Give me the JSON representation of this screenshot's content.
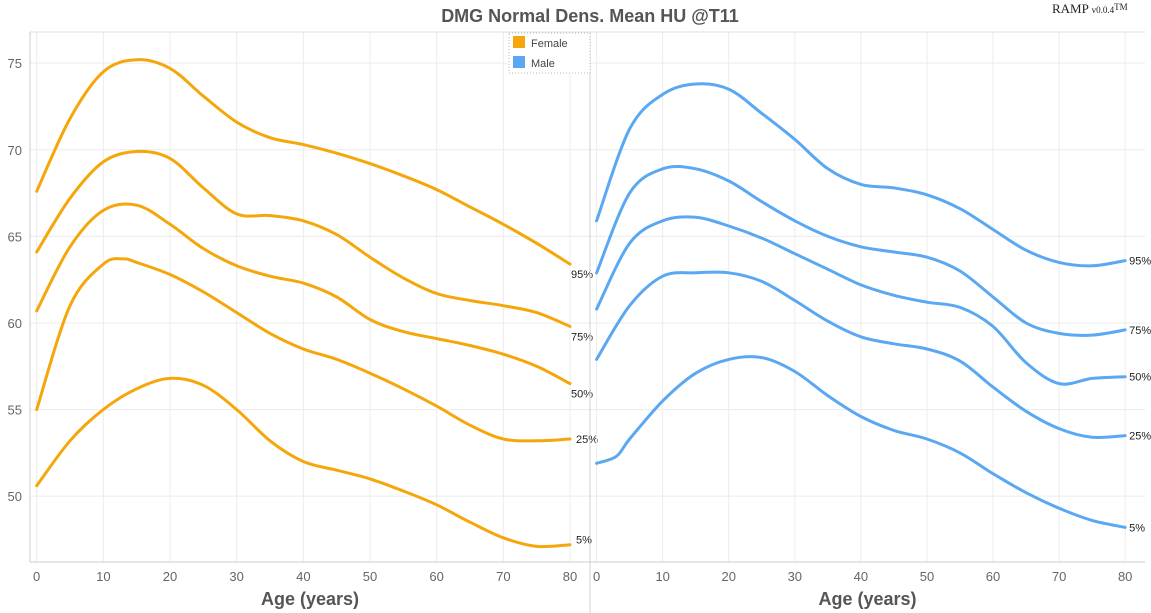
{
  "header": {
    "title": "DMG Normal Dens. Mean HU @T11",
    "brand": "RAMP",
    "version": "v0.0.4",
    "trademark": "TM"
  },
  "legend": {
    "placement": "top-center",
    "items": [
      {
        "label": "Female",
        "color": "#f5a60a"
      },
      {
        "label": "Male",
        "color": "#5aa8f2"
      }
    ]
  },
  "chart_data": [
    {
      "type": "line",
      "xlabel": "Age (years)",
      "ylabel": "",
      "xlim": [
        -1,
        83
      ],
      "ylim": [
        46.2,
        76.8
      ],
      "xticks": [
        0,
        10,
        20,
        30,
        40,
        50,
        60,
        70,
        80
      ],
      "yticks": [
        50,
        55,
        60,
        65,
        70,
        75
      ],
      "grid": true,
      "series": [
        {
          "label": "95%",
          "color": "#f5a60a",
          "x": [
            0,
            5,
            10,
            15,
            20,
            25,
            30,
            35,
            40,
            45,
            50,
            55,
            60,
            65,
            70,
            75,
            80
          ],
          "y": [
            67.6,
            71.8,
            74.5,
            75.2,
            74.7,
            73.1,
            71.6,
            70.7,
            70.3,
            69.8,
            69.2,
            68.5,
            67.7,
            66.7,
            65.7,
            64.6,
            63.4
          ]
        },
        {
          "label": "75%",
          "color": "#f5a60a",
          "x": [
            0,
            5,
            10,
            15,
            20,
            25,
            30,
            35,
            40,
            45,
            50,
            55,
            60,
            65,
            70,
            75,
            80
          ],
          "y": [
            64.1,
            67.2,
            69.3,
            69.9,
            69.5,
            67.8,
            66.3,
            66.2,
            65.9,
            65.1,
            63.8,
            62.6,
            61.7,
            61.3,
            61.0,
            60.6,
            59.8
          ]
        },
        {
          "label": "50%",
          "color": "#f5a60a",
          "x": [
            0,
            5,
            10,
            15,
            20,
            25,
            30,
            35,
            40,
            45,
            50,
            55,
            60,
            65,
            70,
            75,
            80
          ],
          "y": [
            60.7,
            64.4,
            66.5,
            66.8,
            65.7,
            64.3,
            63.3,
            62.7,
            62.3,
            61.5,
            60.2,
            59.5,
            59.1,
            58.7,
            58.2,
            57.5,
            56.5
          ]
        },
        {
          "label": "25%",
          "color": "#f5a60a",
          "x": [
            0,
            5,
            10,
            13,
            15,
            20,
            25,
            30,
            35,
            40,
            45,
            50,
            55,
            60,
            65,
            70,
            75,
            80
          ],
          "y": [
            55.0,
            61.0,
            63.4,
            63.7,
            63.5,
            62.8,
            61.8,
            60.6,
            59.4,
            58.5,
            57.9,
            57.1,
            56.2,
            55.2,
            54.1,
            53.3,
            53.2,
            53.3
          ]
        },
        {
          "label": "5%",
          "color": "#f5a60a",
          "x": [
            0,
            5,
            10,
            15,
            20,
            25,
            30,
            35,
            40,
            45,
            50,
            55,
            60,
            65,
            70,
            75,
            80
          ],
          "y": [
            50.6,
            53.2,
            55.0,
            56.2,
            56.8,
            56.4,
            55.0,
            53.2,
            52.0,
            51.5,
            51.0,
            50.3,
            49.5,
            48.5,
            47.6,
            47.1,
            47.2
          ]
        }
      ]
    },
    {
      "type": "line",
      "xlabel": "Age (years)",
      "ylabel": "",
      "xlim": [
        -1,
        83
      ],
      "ylim": [
        46.2,
        76.8
      ],
      "xticks": [
        0,
        10,
        20,
        30,
        40,
        50,
        60,
        70,
        80
      ],
      "yticks": [
        50,
        55,
        60,
        65,
        70,
        75
      ],
      "grid": true,
      "series": [
        {
          "label": "95%",
          "color": "#5aa8f2",
          "x": [
            0,
            5,
            10,
            15,
            20,
            25,
            30,
            35,
            40,
            45,
            50,
            55,
            60,
            65,
            70,
            75,
            80
          ],
          "y": [
            65.9,
            71.2,
            73.2,
            73.8,
            73.5,
            72.1,
            70.6,
            68.9,
            68.0,
            67.8,
            67.4,
            66.6,
            65.4,
            64.2,
            63.5,
            63.3,
            63.6
          ]
        },
        {
          "label": "75%",
          "color": "#5aa8f2",
          "x": [
            0,
            5,
            10,
            15,
            20,
            25,
            30,
            35,
            40,
            45,
            50,
            55,
            60,
            65,
            70,
            75,
            80
          ],
          "y": [
            62.9,
            67.5,
            68.9,
            68.9,
            68.2,
            67.0,
            65.9,
            65.0,
            64.4,
            64.1,
            63.8,
            63.0,
            61.5,
            60.0,
            59.4,
            59.3,
            59.6
          ]
        },
        {
          "label": "50%",
          "color": "#5aa8f2",
          "x": [
            0,
            5,
            10,
            15,
            20,
            25,
            30,
            35,
            40,
            45,
            50,
            55,
            60,
            65,
            70,
            75,
            80
          ],
          "y": [
            60.8,
            64.6,
            65.9,
            66.1,
            65.6,
            64.9,
            64.0,
            63.1,
            62.2,
            61.6,
            61.2,
            60.9,
            59.8,
            57.7,
            56.5,
            56.8,
            56.9
          ]
        },
        {
          "label": "25%",
          "color": "#5aa8f2",
          "x": [
            0,
            5,
            10,
            15,
            20,
            25,
            30,
            35,
            40,
            45,
            50,
            55,
            60,
            65,
            70,
            75,
            80
          ],
          "y": [
            57.9,
            61.0,
            62.7,
            62.9,
            62.9,
            62.4,
            61.3,
            60.1,
            59.2,
            58.8,
            58.5,
            57.8,
            56.3,
            54.9,
            53.9,
            53.4,
            53.5
          ]
        },
        {
          "label": "5%",
          "color": "#5aa8f2",
          "x": [
            0,
            3,
            5,
            10,
            15,
            20,
            25,
            30,
            35,
            40,
            45,
            50,
            55,
            60,
            65,
            70,
            75,
            80
          ],
          "y": [
            51.9,
            52.3,
            53.3,
            55.5,
            57.1,
            57.9,
            58.0,
            57.2,
            55.8,
            54.6,
            53.8,
            53.3,
            52.5,
            51.3,
            50.2,
            49.3,
            48.6,
            48.2
          ]
        }
      ]
    }
  ]
}
